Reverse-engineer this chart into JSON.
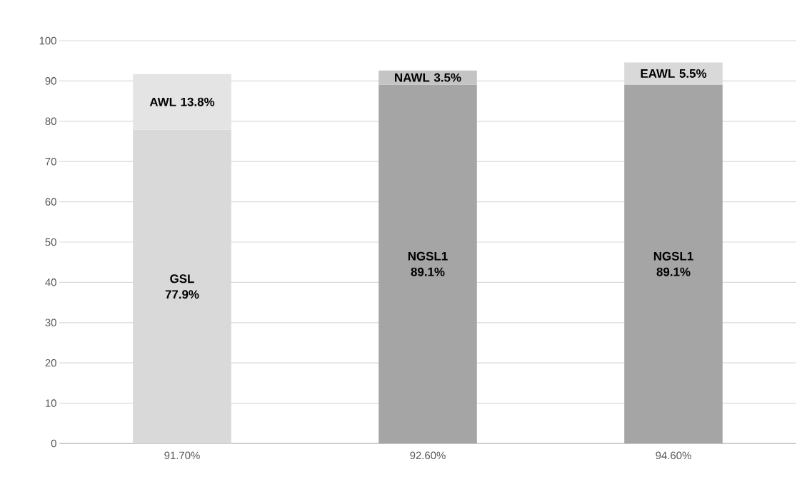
{
  "chart_data": {
    "type": "bar",
    "stacked": true,
    "categories": [
      "91.70%",
      "92.60%",
      "94.60%"
    ],
    "series": [
      {
        "colors": [
          "#d9d9d9",
          "#a5a5a5",
          "#a5a5a5"
        ],
        "values": [
          77.9,
          89.1,
          89.1
        ],
        "value_labels": [
          "GSL 77.9%",
          "NGSL1 89.1%",
          "NGSL1 89.1%"
        ]
      },
      {
        "colors": [
          "#e4e4e4",
          "#c4c4c4",
          "#d9d9d9"
        ],
        "values": [
          13.8,
          3.5,
          5.5
        ],
        "value_labels": [
          "AWL 13.8%",
          "NAWL 3.5%",
          "EAWL 5.5%"
        ]
      }
    ],
    "ylim": [
      0,
      100
    ],
    "yticks": [
      0,
      10,
      20,
      30,
      40,
      50,
      60,
      70,
      80,
      90,
      100
    ],
    "grid": "y"
  }
}
